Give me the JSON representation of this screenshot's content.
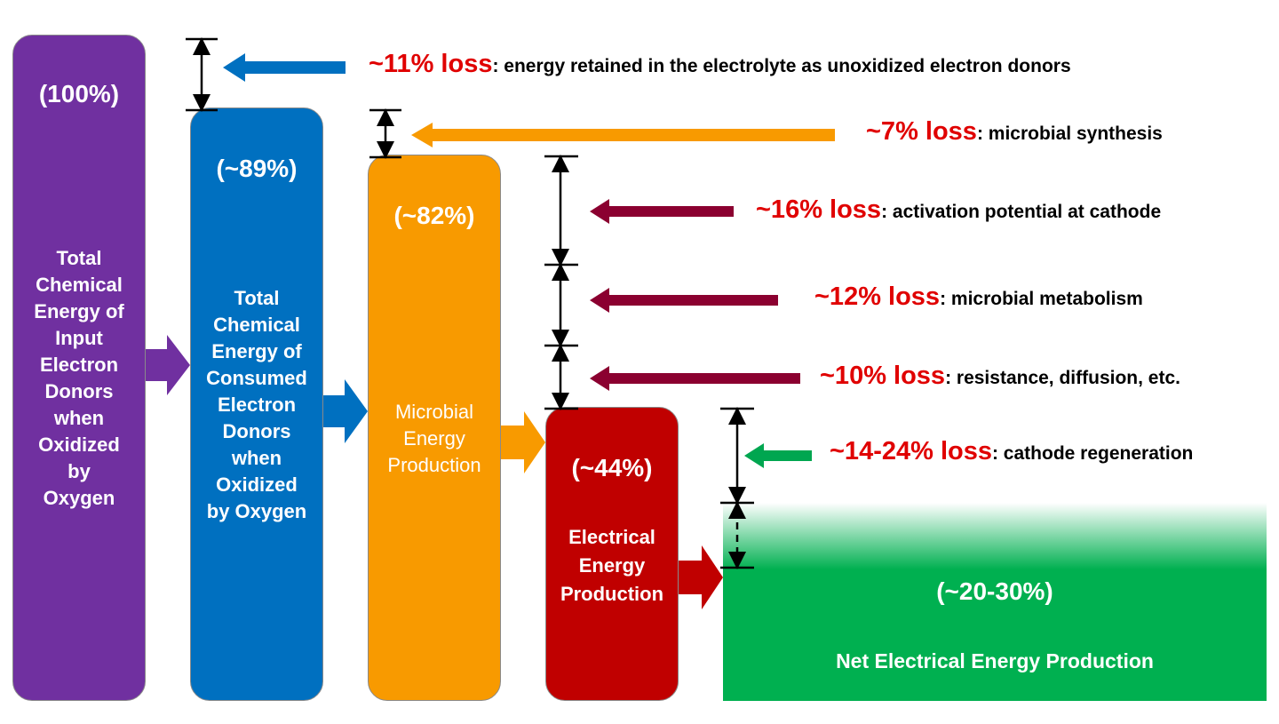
{
  "bars": [
    {
      "pct": "(100%)",
      "label": "Total\nChemical\nEnergy of\nInput\nElectron\nDonors\nwhen\nOxidized\nby\nOxygen",
      "color": "#7030a0"
    },
    {
      "pct": "(~89%)",
      "label": "Total\nChemical\nEnergy of\nConsumed\nElectron\nDonors\nwhen\nOxidized\nby Oxygen",
      "color": "#0070c0"
    },
    {
      "pct": "(~82%)",
      "label": "Microbial\nEnergy\nProduction",
      "color": "#f89a00"
    },
    {
      "pct": "(~44%)",
      "label": "Electrical\nEnergy\nProduction",
      "color": "#c00000"
    },
    {
      "pct": "(~20-30%)",
      "label": "Net Electrical Energy Production",
      "color": "#00b050"
    }
  ],
  "losses": [
    {
      "pct": "~11%  loss",
      "desc": ": energy retained in the electrolyte as unoxidized electron donors",
      "arrow_color": "#0070c0"
    },
    {
      "pct": "~7%  loss",
      "desc": ": microbial synthesis",
      "arrow_color": "#f89a00"
    },
    {
      "pct": "~16%  loss",
      "desc": ": activation potential at cathode",
      "arrow_color": "#8b0030"
    },
    {
      "pct": "~12%  loss",
      "desc": ": microbial metabolism",
      "arrow_color": "#8b0030"
    },
    {
      "pct": "~10%  loss",
      "desc": ": resistance, diffusion, etc.",
      "arrow_color": "#8b0030"
    },
    {
      "pct": "~14-24%  loss",
      "desc": ": cathode regeneration",
      "arrow_color": "#00a650"
    }
  ]
}
